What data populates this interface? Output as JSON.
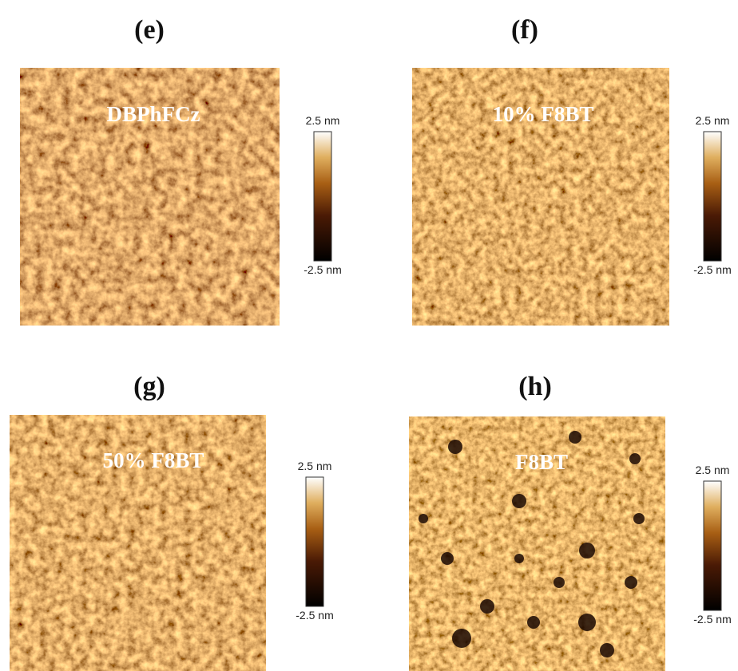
{
  "panels": [
    {
      "label": "(e)",
      "sample": "DBPhFCz",
      "scale_max": "2.5 nm",
      "scale_min": "-2.5 nm"
    },
    {
      "label": "(f)",
      "sample": "10% F8BT",
      "scale_max": "2.5 nm",
      "scale_min": "-2.5 nm"
    },
    {
      "label": "(g)",
      "sample": "50% F8BT",
      "scale_max": "2.5 nm",
      "scale_min": "-2.5 nm"
    },
    {
      "label": "(h)",
      "sample": "F8BT",
      "scale_max": "2.5 nm",
      "scale_min": "-2.5 nm"
    }
  ]
}
